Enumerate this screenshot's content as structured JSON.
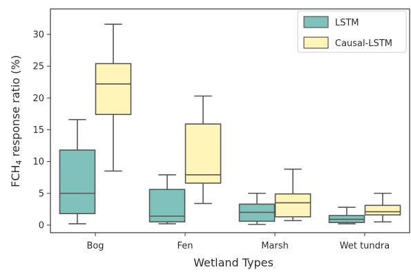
{
  "chart_data": {
    "type": "boxplot",
    "title": "",
    "xlabel": "Wetland Types",
    "ylabel_main": "FCH",
    "ylabel_sub": "4",
    "ylabel_rest": " response ratio (%)",
    "ylim": [
      -1.2,
      34
    ],
    "yticks": [
      0,
      5,
      10,
      15,
      20,
      25,
      30
    ],
    "grid": false,
    "legend_position": "top-right",
    "categories": [
      "Bog",
      "Fen",
      "Marsh",
      "Wet tundra"
    ],
    "series": [
      {
        "name": "LSTM",
        "color": "#7fc2bc",
        "boxes": [
          {
            "whisker_low": 0.2,
            "q1": 1.8,
            "median": 5.0,
            "q3": 11.8,
            "whisker_high": 16.6
          },
          {
            "whisker_low": 0.2,
            "q1": 0.5,
            "median": 1.4,
            "q3": 5.6,
            "whisker_high": 7.9
          },
          {
            "whisker_low": 0.1,
            "q1": 0.6,
            "median": 2.0,
            "q3": 3.3,
            "whisker_high": 5.0
          },
          {
            "whisker_low": 0.2,
            "q1": 0.4,
            "median": 0.9,
            "q3": 1.5,
            "whisker_high": 2.8
          }
        ]
      },
      {
        "name": "Causal-LSTM",
        "color": "#fff5b8",
        "boxes": [
          {
            "whisker_low": 8.5,
            "q1": 17.4,
            "median": 22.2,
            "q3": 25.4,
            "whisker_high": 31.6
          },
          {
            "whisker_low": 3.4,
            "q1": 6.6,
            "median": 7.9,
            "q3": 15.9,
            "whisker_high": 20.3
          },
          {
            "whisker_low": 0.7,
            "q1": 1.3,
            "median": 3.5,
            "q3": 4.9,
            "whisker_high": 8.8
          },
          {
            "whisker_low": 0.5,
            "q1": 1.6,
            "median": 2.1,
            "q3": 3.1,
            "whisker_high": 5.0
          }
        ]
      }
    ]
  }
}
